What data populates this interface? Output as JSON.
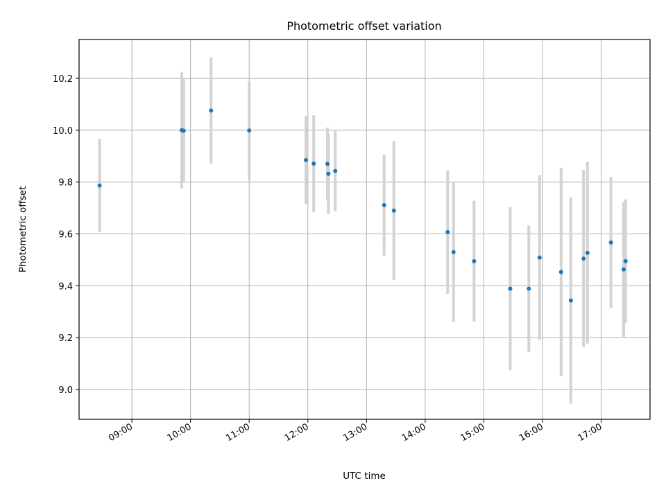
{
  "chart_data": {
    "type": "scatter",
    "title": "Photometric offset variation",
    "xlabel": "UTC time",
    "ylabel": "Photometric offset",
    "x_ticks": [
      "09:00",
      "10:00",
      "11:00",
      "12:00",
      "13:00",
      "14:00",
      "15:00",
      "16:00",
      "17:00"
    ],
    "y_ticks": [
      "9.0",
      "9.2",
      "9.4",
      "9.6",
      "9.8",
      "10.0",
      "10.2"
    ],
    "xlim": [
      "08:06",
      "17:50"
    ],
    "ylim": [
      8.885,
      10.35
    ],
    "grid": true,
    "marker_color": "#1f77b4",
    "errorbar_color": "#d3d3d3",
    "points": [
      {
        "x": "08:27",
        "y": 9.787,
        "yerr": 0.18
      },
      {
        "x": "09:51",
        "y": 10.0,
        "yerr": 0.225
      },
      {
        "x": "09:53",
        "y": 9.998,
        "yerr": 0.2
      },
      {
        "x": "10:21",
        "y": 10.076,
        "yerr": 0.205
      },
      {
        "x": "11:00",
        "y": 9.999,
        "yerr": 0.19
      },
      {
        "x": "11:58",
        "y": 9.885,
        "yerr": 0.17
      },
      {
        "x": "12:06",
        "y": 9.871,
        "yerr": 0.187
      },
      {
        "x": "12:20",
        "y": 9.87,
        "yerr": 0.14
      },
      {
        "x": "12:21",
        "y": 9.832,
        "yerr": 0.155
      },
      {
        "x": "12:28",
        "y": 9.843,
        "yerr": 0.155
      },
      {
        "x": "13:18",
        "y": 9.711,
        "yerr": 0.195
      },
      {
        "x": "13:28",
        "y": 9.69,
        "yerr": 0.268
      },
      {
        "x": "14:23",
        "y": 9.607,
        "yerr": 0.238
      },
      {
        "x": "14:29",
        "y": 9.53,
        "yerr": 0.27
      },
      {
        "x": "14:50",
        "y": 9.495,
        "yerr": 0.233
      },
      {
        "x": "15:27",
        "y": 9.389,
        "yerr": 0.315
      },
      {
        "x": "15:46",
        "y": 9.389,
        "yerr": 0.244
      },
      {
        "x": "15:57",
        "y": 9.509,
        "yerr": 0.318
      },
      {
        "x": "16:19",
        "y": 9.453,
        "yerr": 0.402
      },
      {
        "x": "16:29",
        "y": 9.343,
        "yerr": 0.398
      },
      {
        "x": "16:42",
        "y": 9.505,
        "yerr": 0.342
      },
      {
        "x": "16:46",
        "y": 9.527,
        "yerr": 0.35
      },
      {
        "x": "17:10",
        "y": 9.567,
        "yerr": 0.253
      },
      {
        "x": "17:23",
        "y": 9.463,
        "yerr": 0.26
      },
      {
        "x": "17:25",
        "y": 9.495,
        "yerr": 0.238
      }
    ]
  }
}
